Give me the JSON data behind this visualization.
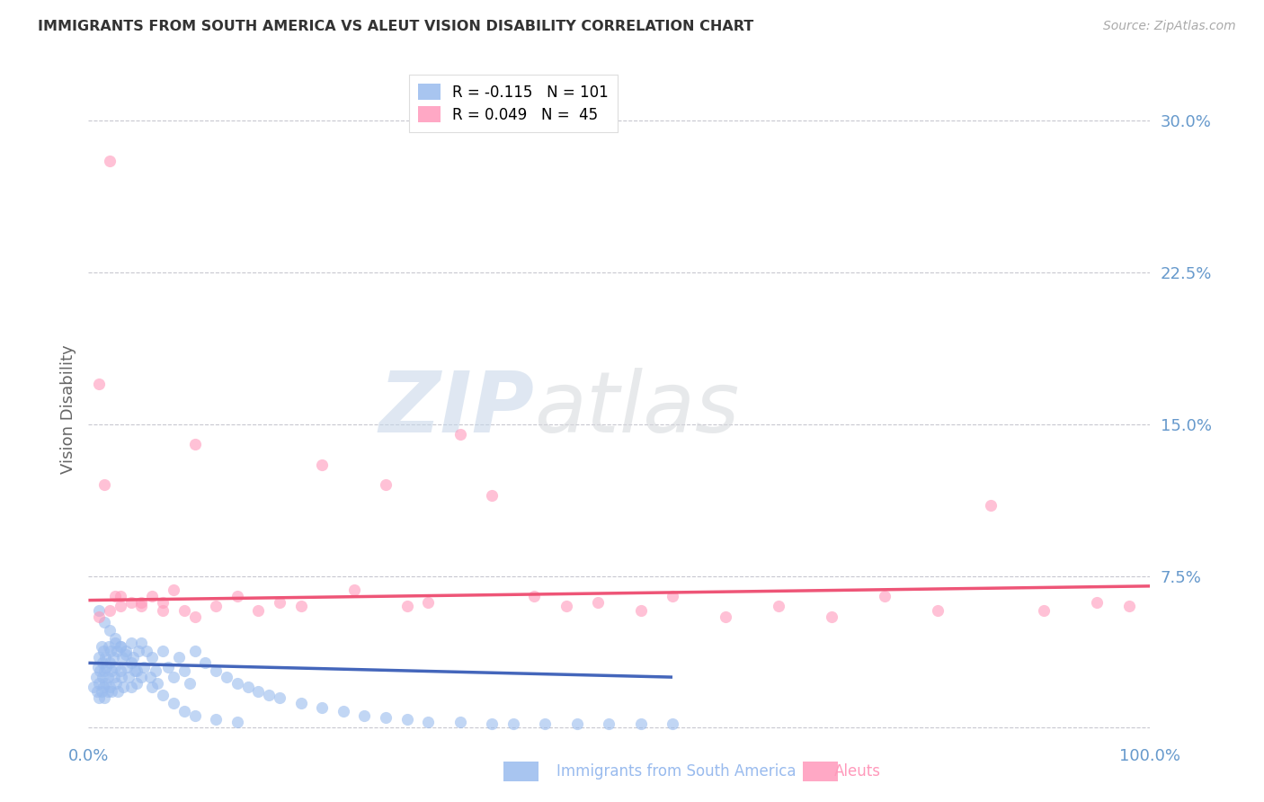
{
  "title": "IMMIGRANTS FROM SOUTH AMERICA VS ALEUT VISION DISABILITY CORRELATION CHART",
  "source": "Source: ZipAtlas.com",
  "ylabel": "Vision Disability",
  "yticks": [
    0.0,
    0.075,
    0.15,
    0.225,
    0.3
  ],
  "ytick_labels": [
    "",
    "7.5%",
    "15.0%",
    "22.5%",
    "30.0%"
  ],
  "xlim": [
    0.0,
    1.0
  ],
  "ylim": [
    -0.005,
    0.32
  ],
  "background_color": "#ffffff",
  "grid_color": "#c8c8d0",
  "title_color": "#333333",
  "axis_color": "#6699cc",
  "blue_color": "#99bbee",
  "pink_color": "#ff99bb",
  "line_blue_color": "#4466bb",
  "line_pink_color": "#ee5577",
  "scatter_alpha": 0.6,
  "scatter_size": 90,
  "blue_scatter_x": [
    0.005,
    0.007,
    0.008,
    0.009,
    0.01,
    0.01,
    0.01,
    0.011,
    0.012,
    0.012,
    0.013,
    0.013,
    0.014,
    0.014,
    0.015,
    0.015,
    0.016,
    0.016,
    0.017,
    0.018,
    0.018,
    0.019,
    0.02,
    0.02,
    0.021,
    0.022,
    0.022,
    0.023,
    0.024,
    0.025,
    0.025,
    0.026,
    0.027,
    0.028,
    0.03,
    0.03,
    0.031,
    0.032,
    0.033,
    0.035,
    0.036,
    0.038,
    0.04,
    0.04,
    0.042,
    0.044,
    0.045,
    0.047,
    0.05,
    0.052,
    0.055,
    0.058,
    0.06,
    0.063,
    0.065,
    0.07,
    0.075,
    0.08,
    0.085,
    0.09,
    0.095,
    0.1,
    0.11,
    0.12,
    0.13,
    0.14,
    0.15,
    0.16,
    0.17,
    0.18,
    0.2,
    0.22,
    0.24,
    0.26,
    0.28,
    0.3,
    0.32,
    0.35,
    0.38,
    0.4,
    0.43,
    0.46,
    0.49,
    0.52,
    0.55,
    0.01,
    0.015,
    0.02,
    0.025,
    0.03,
    0.035,
    0.04,
    0.045,
    0.05,
    0.06,
    0.07,
    0.08,
    0.09,
    0.1,
    0.12,
    0.14
  ],
  "blue_scatter_y": [
    0.02,
    0.025,
    0.018,
    0.03,
    0.022,
    0.015,
    0.035,
    0.028,
    0.018,
    0.04,
    0.025,
    0.032,
    0.02,
    0.038,
    0.028,
    0.015,
    0.035,
    0.022,
    0.03,
    0.025,
    0.018,
    0.04,
    0.032,
    0.02,
    0.038,
    0.028,
    0.018,
    0.035,
    0.025,
    0.042,
    0.03,
    0.022,
    0.038,
    0.018,
    0.04,
    0.028,
    0.025,
    0.035,
    0.02,
    0.038,
    0.03,
    0.025,
    0.042,
    0.02,
    0.035,
    0.028,
    0.022,
    0.038,
    0.042,
    0.03,
    0.038,
    0.025,
    0.035,
    0.028,
    0.022,
    0.038,
    0.03,
    0.025,
    0.035,
    0.028,
    0.022,
    0.038,
    0.032,
    0.028,
    0.025,
    0.022,
    0.02,
    0.018,
    0.016,
    0.015,
    0.012,
    0.01,
    0.008,
    0.006,
    0.005,
    0.004,
    0.003,
    0.003,
    0.002,
    0.002,
    0.002,
    0.002,
    0.002,
    0.002,
    0.002,
    0.058,
    0.052,
    0.048,
    0.044,
    0.04,
    0.036,
    0.032,
    0.028,
    0.025,
    0.02,
    0.016,
    0.012,
    0.008,
    0.006,
    0.004,
    0.003
  ],
  "pink_scatter_x": [
    0.01,
    0.015,
    0.02,
    0.025,
    0.03,
    0.04,
    0.05,
    0.06,
    0.07,
    0.08,
    0.09,
    0.1,
    0.12,
    0.14,
    0.16,
    0.18,
    0.2,
    0.22,
    0.25,
    0.28,
    0.3,
    0.32,
    0.35,
    0.38,
    0.42,
    0.45,
    0.48,
    0.52,
    0.55,
    0.6,
    0.65,
    0.7,
    0.75,
    0.8,
    0.85,
    0.9,
    0.95,
    0.98,
    0.01,
    0.02,
    0.03,
    0.05,
    0.07,
    0.1
  ],
  "pink_scatter_y": [
    0.17,
    0.12,
    0.28,
    0.065,
    0.065,
    0.062,
    0.06,
    0.065,
    0.062,
    0.068,
    0.058,
    0.14,
    0.06,
    0.065,
    0.058,
    0.062,
    0.06,
    0.13,
    0.068,
    0.12,
    0.06,
    0.062,
    0.145,
    0.115,
    0.065,
    0.06,
    0.062,
    0.058,
    0.065,
    0.055,
    0.06,
    0.055,
    0.065,
    0.058,
    0.11,
    0.058,
    0.062,
    0.06,
    0.055,
    0.058,
    0.06,
    0.062,
    0.058,
    0.055
  ],
  "blue_line_x": [
    0.0,
    0.55
  ],
  "blue_line_y": [
    0.032,
    0.025
  ],
  "pink_line_x": [
    0.0,
    1.0
  ],
  "pink_line_y": [
    0.063,
    0.07
  ]
}
